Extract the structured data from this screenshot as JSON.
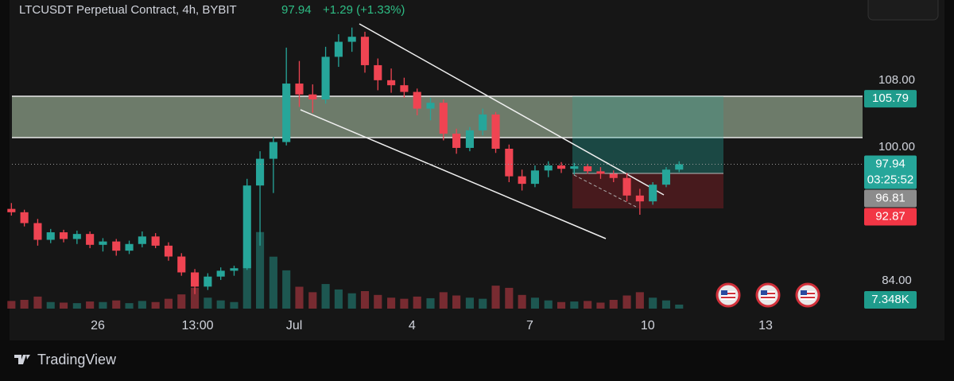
{
  "chart_data": {
    "type": "candlestick",
    "title": "LTCUSDT Perpetual Contract, 4h, BYBIT",
    "header_price": "97.94",
    "header_change": "+1.29 (+1.33%)",
    "up_color": "#26a69a",
    "down_color": "#ef4452",
    "xlim": [
      23.51,
      45.47
    ],
    "xticks": [
      26,
      {
        "value": 28.54,
        "label": "13:00"
      },
      {
        "value": 31,
        "label": "Jul"
      },
      {
        "value": 34,
        "label": "4"
      },
      {
        "value": 37,
        "label": "7"
      },
      {
        "value": 40,
        "label": "10"
      },
      {
        "value": 43,
        "label": "13"
      }
    ],
    "ylim": [
      80,
      117.6
    ],
    "yticks": [
      {
        "value": 84,
        "label": "84.00"
      },
      {
        "value": 100,
        "label": "100.00"
      },
      {
        "value": 108,
        "label": "108.00"
      }
    ],
    "volume_lim": [
      0,
      160000
    ],
    "x": [
      23.8,
      24.13,
      24.47,
      24.8,
      25.13,
      25.47,
      25.8,
      26.13,
      26.47,
      26.8,
      27.13,
      27.47,
      27.8,
      28.13,
      28.47,
      28.8,
      29.13,
      29.47,
      29.8,
      30.13,
      30.47,
      30.8,
      31.13,
      31.47,
      31.8,
      32.13,
      32.47,
      32.8,
      33.13,
      33.47,
      33.8,
      34.13,
      34.47,
      34.8,
      35.13,
      35.47,
      35.8,
      36.13,
      36.47,
      36.8,
      37.13,
      37.47,
      37.8,
      38.13,
      38.47,
      38.8,
      39.13,
      39.47,
      39.8,
      40.13,
      40.47,
      40.8
    ],
    "open": [
      92.6,
      92.2,
      90.9,
      88.9,
      89.8,
      89.0,
      89.6,
      88.3,
      88.7,
      87.6,
      88.4,
      89.3,
      88.2,
      86.9,
      85.0,
      83.3,
      84.5,
      85.2,
      85.5,
      95.4,
      98.6,
      100.6,
      107.6,
      106.3,
      105.7,
      110.8,
      112.6,
      113.2,
      109.8,
      108.0,
      107.4,
      106.6,
      104.6,
      105.3,
      101.6,
      99.9,
      102.0,
      103.9,
      99.8,
      96.5,
      95.6,
      97.2,
      97.8,
      97.4,
      97.7,
      97.1,
      96.8,
      96.3,
      94.2,
      93.5,
      95.5,
      97.3
    ],
    "high": [
      93.3,
      92.5,
      91.4,
      90.2,
      90.1,
      90.0,
      89.9,
      89.1,
      89.0,
      88.8,
      89.9,
      89.7,
      88.6,
      87.3,
      85.4,
      84.9,
      85.6,
      85.8,
      96.2,
      99.5,
      101.2,
      111.9,
      110.3,
      107.5,
      112.0,
      113.5,
      114.3,
      113.8,
      110.6,
      109.4,
      108.3,
      107.0,
      105.9,
      105.7,
      102.2,
      102.4,
      104.6,
      104.2,
      100.3,
      97.3,
      97.8,
      98.3,
      98.2,
      98.1,
      98.0,
      97.6,
      97.2,
      96.9,
      95.0,
      95.8,
      97.6,
      98.3
    ],
    "low": [
      91.8,
      90.5,
      88.2,
      88.5,
      88.6,
      88.4,
      87.9,
      87.5,
      87.0,
      87.2,
      88.0,
      87.9,
      86.4,
      84.6,
      82.4,
      82.9,
      84.1,
      84.6,
      85.3,
      88.2,
      94.5,
      100.2,
      104.8,
      104.1,
      105.2,
      109.6,
      111.4,
      108.9,
      106.8,
      106.5,
      105.9,
      103.8,
      103.2,
      100.8,
      99.2,
      99.5,
      101.4,
      99.3,
      95.8,
      94.8,
      95.2,
      96.4,
      96.9,
      96.7,
      96.8,
      96.2,
      95.8,
      93.5,
      91.9,
      93.1,
      95.2,
      97.0
    ],
    "close": [
      92.2,
      90.9,
      88.9,
      89.8,
      89.0,
      89.6,
      88.3,
      88.7,
      87.6,
      88.4,
      89.3,
      88.2,
      86.9,
      85.0,
      83.3,
      84.5,
      85.2,
      85.5,
      95.4,
      98.6,
      100.6,
      107.6,
      106.3,
      105.7,
      110.8,
      112.6,
      113.2,
      109.8,
      108.0,
      107.4,
      106.6,
      104.6,
      105.3,
      101.6,
      99.9,
      102.0,
      103.9,
      99.8,
      96.5,
      95.6,
      97.2,
      97.8,
      97.4,
      97.7,
      97.1,
      96.8,
      96.3,
      94.2,
      93.5,
      95.5,
      97.3,
      97.94
    ],
    "volumes": [
      14000,
      16000,
      22000,
      12000,
      11000,
      10000,
      13000,
      12000,
      15000,
      10000,
      14000,
      12000,
      18000,
      26000,
      38000,
      20000,
      15000,
      12000,
      90000,
      140000,
      95000,
      70000,
      40000,
      30000,
      45000,
      35000,
      28000,
      32000,
      25000,
      20000,
      18000,
      22000,
      19000,
      30000,
      24000,
      20000,
      18000,
      42000,
      38000,
      25000,
      20000,
      15000,
      12000,
      13000,
      14000,
      11000,
      16000,
      24000,
      30000,
      20000,
      15000,
      7348
    ],
    "volume_label": {
      "value": 7348,
      "label": "7.348K"
    },
    "last_price": 97.94,
    "countdown": "03:25:52",
    "price_labels": [
      {
        "value": 105.79,
        "color": "#1f9c8c"
      },
      {
        "value": 96.81,
        "color": "#8c8c8c"
      },
      {
        "value": 92.87,
        "color": "#f23645"
      }
    ],
    "brand": "TradingView"
  }
}
